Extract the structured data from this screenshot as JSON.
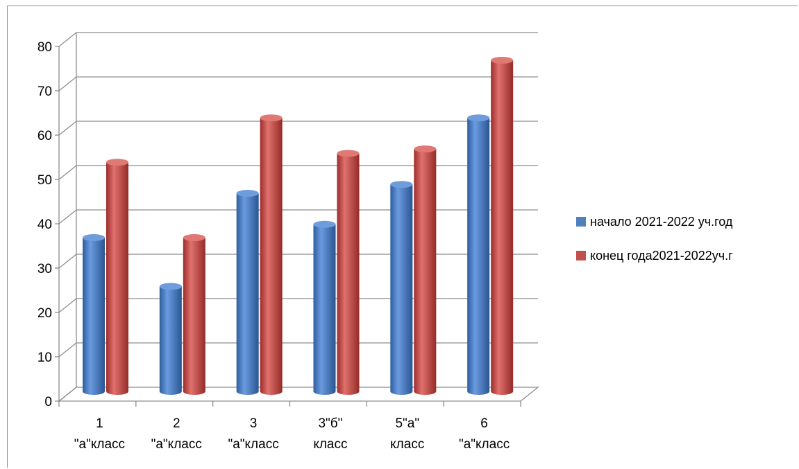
{
  "chart_data": {
    "type": "bar",
    "style": "3d-cylinder",
    "title": "",
    "xlabel": "",
    "ylabel": "",
    "categories": [
      [
        "1",
        "\"а\"класс"
      ],
      [
        "2",
        "\"а\"класс"
      ],
      [
        "3",
        "\"а\"класс"
      ],
      [
        "3\"б\"",
        "класс"
      ],
      [
        "5\"а\"",
        "класс"
      ],
      [
        "6",
        "\"а\"класс"
      ]
    ],
    "series": [
      {
        "name": "начало 2021-2022 уч.год",
        "color": "#4f81bd",
        "values": [
          35,
          24,
          45,
          38,
          47,
          62
        ]
      },
      {
        "name": "конец года2021-2022уч.г",
        "color": "#c0504d",
        "values": [
          52,
          35,
          62,
          54,
          55,
          75
        ]
      }
    ],
    "ylim": [
      0,
      80
    ],
    "yticks": [
      0,
      10,
      20,
      30,
      40,
      50,
      60,
      70,
      80
    ],
    "grid": true,
    "legend_position": "right"
  }
}
